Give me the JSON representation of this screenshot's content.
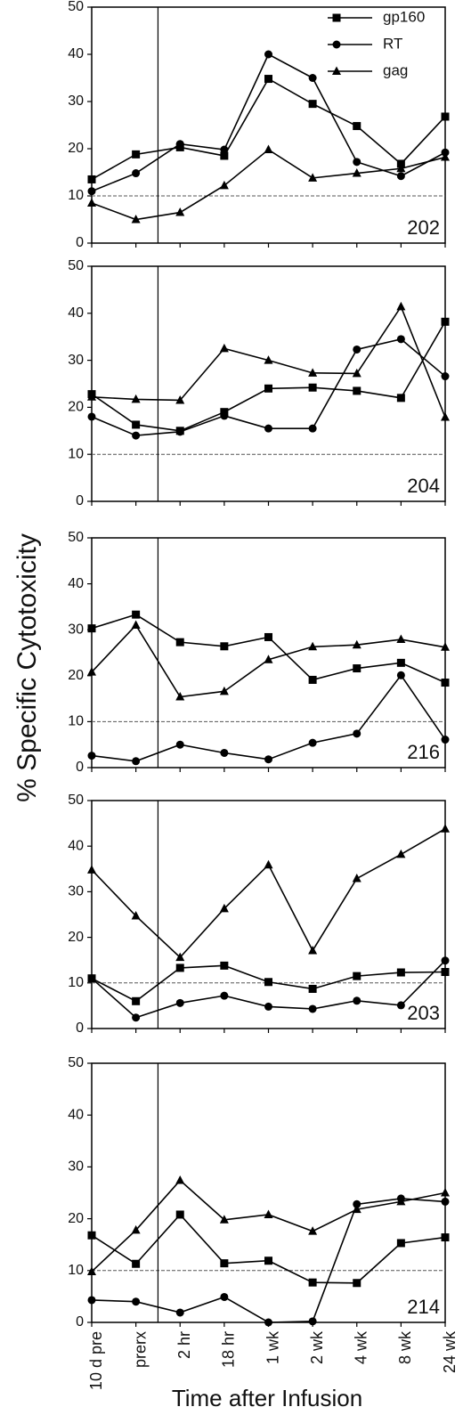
{
  "chart_data": {
    "type": "line",
    "ylabel": "% Specific Cytotoxicity",
    "xlabel": "Time after Infusion",
    "categories": [
      "10 d pre",
      "prerx",
      "2 hr",
      "18 hr",
      "1 wk",
      "2 wk",
      "4 wk",
      "8 wk",
      "24 wk"
    ],
    "ylim": [
      0,
      50
    ],
    "yticks": [
      0,
      10,
      20,
      30,
      40,
      50
    ],
    "reference_line": 10,
    "series": [
      {
        "name": "gp160",
        "color": "#000000",
        "marker": "square"
      },
      {
        "name": "RT",
        "color": "#000000",
        "marker": "circle"
      },
      {
        "name": "gag",
        "color": "#000000",
        "marker": "triangle"
      }
    ],
    "panels": [
      {
        "label": "202",
        "values": [
          [
            13.5,
            18.8,
            20.3,
            18.5,
            34.8,
            29.5,
            24.8,
            16.8,
            26.8
          ],
          [
            11,
            14.8,
            21,
            19.8,
            40,
            35,
            17.2,
            14.2,
            19.2
          ],
          [
            8.5,
            5,
            6.5,
            12.2,
            19.8,
            13.8,
            14.8,
            15.8,
            18.2
          ]
        ]
      },
      {
        "label": "204",
        "values": [
          [
            22.8,
            16.3,
            15,
            19,
            24,
            24.2,
            23.5,
            22,
            38.2
          ],
          [
            18,
            14,
            14.8,
            18.2,
            15.5,
            15.5,
            32.3,
            34.5,
            26.6
          ],
          [
            22.2,
            21.7,
            21.5,
            32.5,
            30,
            27.3,
            27.2,
            41.4,
            17.9
          ]
        ]
      },
      {
        "label": "216",
        "values": [
          [
            30.3,
            33.3,
            27.3,
            26.4,
            28.4,
            19.1,
            21.6,
            22.8,
            18.5
          ],
          [
            2.6,
            1.4,
            5,
            3.2,
            1.8,
            5.4,
            7.4,
            20.1,
            6.1
          ],
          [
            20.8,
            31,
            15.4,
            16.6,
            23.5,
            26.3,
            26.7,
            27.9,
            26.2
          ]
        ]
      },
      {
        "label": "203",
        "values": [
          [
            11,
            6,
            13.3,
            13.8,
            10.2,
            8.7,
            11.5,
            12.3,
            12.4
          ],
          [
            11,
            2.4,
            5.6,
            7.2,
            4.8,
            4.3,
            6.1,
            5.1,
            14.9
          ],
          [
            34.8,
            24.7,
            15.6,
            26.3,
            35.9,
            17.1,
            32.9,
            38.2,
            43.8
          ]
        ]
      },
      {
        "label": "214",
        "values": [
          [
            16.8,
            11.3,
            20.8,
            11.4,
            11.9,
            7.7,
            7.6,
            15.3,
            16.4
          ],
          [
            4.3,
            4,
            1.9,
            4.9,
            0,
            0.2,
            22.8,
            23.9,
            23.3
          ],
          [
            9.8,
            17.8,
            27.4,
            19.8,
            20.8,
            17.6,
            21.8,
            23.3,
            25
          ]
        ]
      }
    ]
  }
}
